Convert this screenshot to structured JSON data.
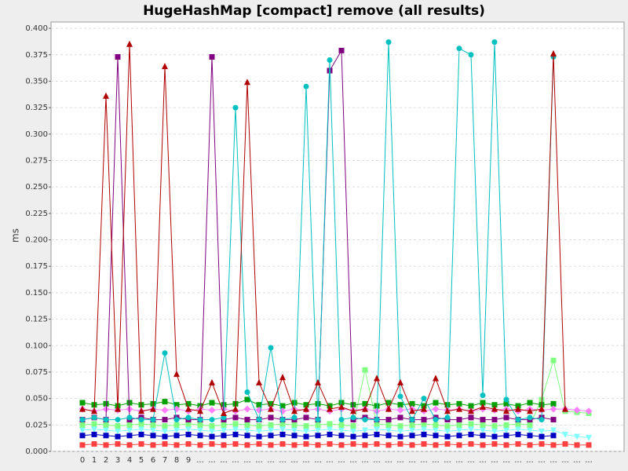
{
  "chart_data": {
    "type": "line",
    "title": "HugeHashMap [compact] remove (all results)",
    "y_label": "ms",
    "categories": [
      "0",
      "1",
      "2",
      "3",
      "4",
      "5",
      "6",
      "7",
      "8",
      "9",
      "...",
      "...",
      "...",
      "...",
      "...",
      "...",
      "...",
      "...",
      "...",
      "...",
      "...",
      "...",
      "...",
      "...",
      "...",
      "...",
      "...",
      "...",
      "...",
      "...",
      "...",
      "...",
      "...",
      "...",
      "...",
      "...",
      "...",
      "...",
      "...",
      "...",
      "...",
      "...",
      "...",
      "..."
    ],
    "ylim": [
      0,
      0.406
    ],
    "yticks": [
      {
        "value": 0,
        "label": "0.000"
      },
      {
        "value": 0.025,
        "label": "0.025"
      },
      {
        "value": 0.05,
        "label": "0.050"
      },
      {
        "value": 0.075,
        "label": "0.075"
      },
      {
        "value": 0.1,
        "label": "0.100"
      },
      {
        "value": 0.125,
        "label": "0.125"
      },
      {
        "value": 0.15,
        "label": "0.150"
      },
      {
        "value": 0.175,
        "label": "0.175"
      },
      {
        "value": 0.2,
        "label": "0.200"
      },
      {
        "value": 0.225,
        "label": "0.225"
      },
      {
        "value": 0.25,
        "label": "0.250"
      },
      {
        "value": 0.275,
        "label": "0.275"
      },
      {
        "value": 0.3,
        "label": "0.300"
      },
      {
        "value": 0.325,
        "label": "0.325"
      },
      {
        "value": 0.35,
        "label": "0.350"
      },
      {
        "value": 0.375,
        "label": "0.375"
      },
      {
        "value": 0.4,
        "label": "0.400"
      }
    ],
    "grid": true,
    "series": [
      {
        "color": "#ff4040",
        "marker": "square",
        "values": [
          0.006,
          0.007,
          0.006,
          0.007,
          0.006,
          0.007,
          0.006,
          0.007,
          0.006,
          0.007,
          0.006,
          0.007,
          0.006,
          0.007,
          0.006,
          0.007,
          0.006,
          0.007,
          0.006,
          0.007,
          0.006,
          0.007,
          0.006,
          0.007,
          0.006,
          0.007,
          0.006,
          0.007,
          0.006,
          0.007,
          0.006,
          0.007,
          0.006,
          0.007,
          0.006,
          0.007,
          0.006,
          0.007,
          0.006,
          0.007,
          0.006,
          0.007,
          0.006,
          0.006
        ]
      },
      {
        "color": "#80ffff",
        "marker": "triangle-down",
        "values": [
          0.02,
          0.021,
          0.02,
          0.019,
          0.02,
          0.021,
          0.02,
          0.019,
          0.02,
          0.021,
          0.02,
          0.019,
          0.02,
          0.021,
          0.02,
          0.019,
          0.02,
          0.021,
          0.02,
          0.019,
          0.02,
          0.021,
          0.02,
          0.019,
          0.02,
          0.021,
          0.02,
          0.019,
          0.02,
          0.021,
          0.02,
          0.019,
          0.02,
          0.021,
          0.02,
          0.019,
          0.02,
          0.021,
          0.02,
          0.019,
          0.02,
          0.016,
          0.014,
          0.013
        ]
      },
      {
        "color": "#0000c0",
        "marker": "square",
        "values": [
          0.015,
          0.016,
          0.015,
          0.014,
          0.015,
          0.016,
          0.015,
          0.014,
          0.015,
          0.016,
          0.015,
          0.014,
          0.015,
          0.016,
          0.015,
          0.014,
          0.015,
          0.016,
          0.015,
          0.014,
          0.015,
          0.016,
          0.015,
          0.014,
          0.015,
          0.016,
          0.015,
          0.014,
          0.015,
          0.016,
          0.015,
          0.014,
          0.015,
          0.016,
          0.015,
          0.014,
          0.015,
          0.016,
          0.015,
          0.014,
          0.015,
          null,
          null,
          null
        ]
      },
      {
        "color": "#80ff80",
        "marker": "square",
        "values": [
          0.025,
          0.026,
          0.025,
          0.024,
          0.025,
          0.026,
          0.025,
          0.024,
          0.025,
          0.026,
          0.025,
          0.024,
          0.025,
          0.026,
          0.025,
          0.024,
          0.025,
          0.026,
          0.025,
          0.024,
          0.025,
          0.026,
          0.025,
          0.024,
          0.077,
          0.026,
          0.025,
          0.024,
          0.025,
          0.026,
          0.025,
          0.024,
          0.025,
          0.026,
          0.025,
          0.024,
          0.025,
          0.026,
          0.025,
          0.049,
          0.086,
          0.038,
          0.037,
          0.036
        ]
      },
      {
        "color": "#00a000",
        "marker": "square",
        "values": [
          0.046,
          0.044,
          0.045,
          0.043,
          0.046,
          0.044,
          0.045,
          0.047,
          0.044,
          0.045,
          0.043,
          0.046,
          0.044,
          0.045,
          0.049,
          0.044,
          0.045,
          0.043,
          0.046,
          0.044,
          0.045,
          0.043,
          0.046,
          0.044,
          0.045,
          0.043,
          0.046,
          0.044,
          0.045,
          0.043,
          0.046,
          0.044,
          0.045,
          0.043,
          0.046,
          0.044,
          0.045,
          0.043,
          0.046,
          0.044,
          0.045,
          null,
          null,
          null
        ]
      },
      {
        "color": "#ff80ff",
        "marker": "diamond",
        "values": [
          0.04,
          0.038,
          0.04,
          0.039,
          0.04,
          0.038,
          0.04,
          0.039,
          0.04,
          0.038,
          0.04,
          0.039,
          0.04,
          0.038,
          0.04,
          0.039,
          0.04,
          0.038,
          0.04,
          0.039,
          0.04,
          0.038,
          0.04,
          0.039,
          0.04,
          0.038,
          0.04,
          0.039,
          0.04,
          0.038,
          0.04,
          0.039,
          0.04,
          0.038,
          0.04,
          0.039,
          0.04,
          0.038,
          0.04,
          0.039,
          0.04,
          0.04,
          0.039,
          0.038
        ]
      },
      {
        "color": "#800080",
        "marker": "square",
        "values": [
          0.03,
          0.032,
          0.03,
          0.373,
          0.03,
          0.032,
          0.03,
          0.03,
          0.032,
          0.03,
          0.03,
          0.373,
          0.03,
          0.032,
          0.03,
          0.03,
          0.032,
          0.03,
          0.03,
          0.032,
          0.03,
          0.36,
          0.379,
          0.03,
          0.032,
          0.03,
          0.03,
          0.032,
          0.03,
          0.03,
          0.032,
          0.03,
          0.03,
          0.032,
          0.03,
          0.03,
          0.032,
          0.03,
          0.03,
          0.032,
          0.03,
          null,
          null,
          null
        ]
      },
      {
        "color": "#00c0c0",
        "marker": "circle",
        "values": [
          0.03,
          0.032,
          0.03,
          0.03,
          0.032,
          0.03,
          0.03,
          0.093,
          0.03,
          0.032,
          0.03,
          0.03,
          0.032,
          0.325,
          0.056,
          0.03,
          0.098,
          0.03,
          0.032,
          0.345,
          0.03,
          0.37,
          0.03,
          0.032,
          0.03,
          0.03,
          0.387,
          0.052,
          0.03,
          0.05,
          0.03,
          0.032,
          0.381,
          0.375,
          0.053,
          0.387,
          0.049,
          0.03,
          0.032,
          0.03,
          0.373,
          null,
          null,
          null
        ]
      },
      {
        "color": "#b00000",
        "marker": "triangle",
        "values": [
          0.04,
          0.038,
          0.336,
          0.04,
          0.385,
          0.038,
          0.04,
          0.364,
          0.073,
          0.04,
          0.038,
          0.065,
          0.036,
          0.04,
          0.349,
          0.065,
          0.04,
          0.07,
          0.038,
          0.04,
          0.065,
          0.04,
          0.042,
          0.038,
          0.04,
          0.069,
          0.04,
          0.065,
          0.038,
          0.04,
          0.069,
          0.038,
          0.04,
          0.038,
          0.042,
          0.04,
          0.038,
          0.04,
          0.038,
          0.04,
          0.376,
          0.04,
          null,
          null
        ]
      }
    ]
  }
}
